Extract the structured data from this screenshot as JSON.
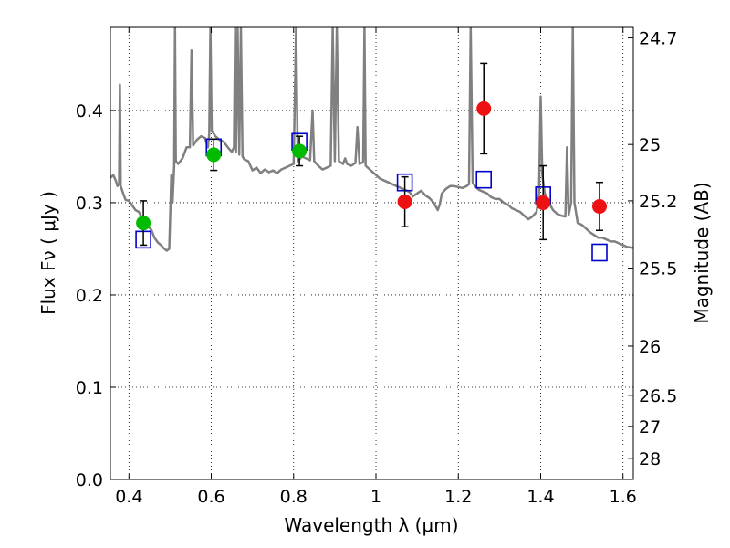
{
  "chart_data": {
    "type": "scatter",
    "xlabel": "Wavelength  λ (μm)",
    "ylabel": "Flux  Fν  ( μJy )",
    "ylabel_right": "Magnitude (AB)",
    "xlim": [
      0.355,
      1.625
    ],
    "ylim": [
      0.0,
      0.49
    ],
    "grid": true,
    "x_ticks": [
      {
        "value": 0.4,
        "label": "0.4"
      },
      {
        "value": 0.6,
        "label": "0.6"
      },
      {
        "value": 0.8,
        "label": "0.8"
      },
      {
        "value": 1.0,
        "label": "1"
      },
      {
        "value": 1.2,
        "label": "1.2"
      },
      {
        "value": 1.4,
        "label": "1.4"
      },
      {
        "value": 1.6,
        "label": "1.6"
      }
    ],
    "y_ticks": [
      {
        "value": 0.0,
        "label": "0.0"
      },
      {
        "value": 0.1,
        "label": "0.1"
      },
      {
        "value": 0.2,
        "label": "0.2"
      },
      {
        "value": 0.3,
        "label": "0.3"
      },
      {
        "value": 0.4,
        "label": "0.4"
      }
    ],
    "mag_ticks": [
      {
        "value": 24.7,
        "label": "24.7"
      },
      {
        "value": 25.0,
        "label": "25"
      },
      {
        "value": 25.2,
        "label": "25.2"
      },
      {
        "value": 25.5,
        "label": "25.5"
      },
      {
        "value": 26.0,
        "label": "26"
      },
      {
        "value": 26.5,
        "label": "26.5"
      },
      {
        "value": 27.0,
        "label": "27"
      },
      {
        "value": 28.0,
        "label": "28"
      }
    ],
    "model_spectrum": {
      "color": "#808080",
      "points": [
        [
          0.355,
          0.327
        ],
        [
          0.362,
          0.33
        ],
        [
          0.368,
          0.324
        ],
        [
          0.372,
          0.318
        ],
        [
          0.376,
          0.32
        ],
        [
          0.378,
          0.428
        ],
        [
          0.38,
          0.318
        ],
        [
          0.386,
          0.31
        ],
        [
          0.392,
          0.303
        ],
        [
          0.4,
          0.302
        ],
        [
          0.408,
          0.297
        ],
        [
          0.416,
          0.292
        ],
        [
          0.424,
          0.29
        ],
        [
          0.432,
          0.284
        ],
        [
          0.44,
          0.281
        ],
        [
          0.448,
          0.274
        ],
        [
          0.455,
          0.27
        ],
        [
          0.462,
          0.262
        ],
        [
          0.47,
          0.257
        ],
        [
          0.478,
          0.254
        ],
        [
          0.486,
          0.25
        ],
        [
          0.492,
          0.248
        ],
        [
          0.498,
          0.25
        ],
        [
          0.503,
          0.33
        ],
        [
          0.506,
          0.3
        ],
        [
          0.51,
          0.34
        ],
        [
          0.512,
          0.49
        ],
        [
          0.514,
          0.345
        ],
        [
          0.52,
          0.342
        ],
        [
          0.53,
          0.348
        ],
        [
          0.54,
          0.36
        ],
        [
          0.548,
          0.36
        ],
        [
          0.552,
          0.465
        ],
        [
          0.556,
          0.362
        ],
        [
          0.565,
          0.368
        ],
        [
          0.575,
          0.372
        ],
        [
          0.585,
          0.37
        ],
        [
          0.592,
          0.36
        ],
        [
          0.595,
          0.375
        ],
        [
          0.598,
          0.49
        ],
        [
          0.601,
          0.378
        ],
        [
          0.61,
          0.372
        ],
        [
          0.62,
          0.368
        ],
        [
          0.63,
          0.366
        ],
        [
          0.64,
          0.36
        ],
        [
          0.65,
          0.355
        ],
        [
          0.655,
          0.36
        ],
        [
          0.658,
          0.49
        ],
        [
          0.66,
          0.355
        ],
        [
          0.664,
          0.49
        ],
        [
          0.668,
          0.352
        ],
        [
          0.672,
          0.49
        ],
        [
          0.676,
          0.35
        ],
        [
          0.68,
          0.347
        ],
        [
          0.69,
          0.345
        ],
        [
          0.7,
          0.335
        ],
        [
          0.71,
          0.338
        ],
        [
          0.72,
          0.332
        ],
        [
          0.73,
          0.336
        ],
        [
          0.74,
          0.333
        ],
        [
          0.75,
          0.335
        ],
        [
          0.76,
          0.332
        ],
        [
          0.77,
          0.336
        ],
        [
          0.78,
          0.338
        ],
        [
          0.79,
          0.34
        ],
        [
          0.8,
          0.342
        ],
        [
          0.806,
          0.49
        ],
        [
          0.81,
          0.345
        ],
        [
          0.82,
          0.35
        ],
        [
          0.83,
          0.348
        ],
        [
          0.84,
          0.346
        ],
        [
          0.846,
          0.4
        ],
        [
          0.85,
          0.345
        ],
        [
          0.86,
          0.34
        ],
        [
          0.87,
          0.336
        ],
        [
          0.88,
          0.338
        ],
        [
          0.89,
          0.34
        ],
        [
          0.895,
          0.49
        ],
        [
          0.9,
          0.345
        ],
        [
          0.905,
          0.49
        ],
        [
          0.91,
          0.345
        ],
        [
          0.92,
          0.342
        ],
        [
          0.925,
          0.348
        ],
        [
          0.93,
          0.342
        ],
        [
          0.94,
          0.34
        ],
        [
          0.95,
          0.343
        ],
        [
          0.955,
          0.382
        ],
        [
          0.96,
          0.342
        ],
        [
          0.969,
          0.344
        ],
        [
          0.972,
          0.49
        ],
        [
          0.975,
          0.34
        ],
        [
          0.985,
          0.336
        ],
        [
          1.0,
          0.33
        ],
        [
          1.01,
          0.326
        ],
        [
          1.03,
          0.322
        ],
        [
          1.05,
          0.318
        ],
        [
          1.065,
          0.315
        ],
        [
          1.08,
          0.312
        ],
        [
          1.09,
          0.307
        ],
        [
          1.1,
          0.31
        ],
        [
          1.11,
          0.313
        ],
        [
          1.12,
          0.308
        ],
        [
          1.13,
          0.305
        ],
        [
          1.14,
          0.3
        ],
        [
          1.15,
          0.292
        ],
        [
          1.155,
          0.298
        ],
        [
          1.16,
          0.31
        ],
        [
          1.17,
          0.315
        ],
        [
          1.18,
          0.318
        ],
        [
          1.19,
          0.318
        ],
        [
          1.2,
          0.317
        ],
        [
          1.21,
          0.316
        ],
        [
          1.22,
          0.318
        ],
        [
          1.226,
          0.32
        ],
        [
          1.23,
          0.49
        ],
        [
          1.235,
          0.322
        ],
        [
          1.24,
          0.318
        ],
        [
          1.25,
          0.314
        ],
        [
          1.26,
          0.312
        ],
        [
          1.27,
          0.31
        ],
        [
          1.28,
          0.306
        ],
        [
          1.29,
          0.304
        ],
        [
          1.3,
          0.304
        ],
        [
          1.31,
          0.3
        ],
        [
          1.32,
          0.298
        ],
        [
          1.33,
          0.294
        ],
        [
          1.34,
          0.292
        ],
        [
          1.35,
          0.29
        ],
        [
          1.36,
          0.286
        ],
        [
          1.37,
          0.282
        ],
        [
          1.38,
          0.285
        ],
        [
          1.39,
          0.29
        ],
        [
          1.396,
          0.31
        ],
        [
          1.4,
          0.415
        ],
        [
          1.404,
          0.33
        ],
        [
          1.41,
          0.31
        ],
        [
          1.42,
          0.3
        ],
        [
          1.43,
          0.292
        ],
        [
          1.44,
          0.288
        ],
        [
          1.45,
          0.286
        ],
        [
          1.46,
          0.285
        ],
        [
          1.464,
          0.36
        ],
        [
          1.468,
          0.287
        ],
        [
          1.474,
          0.3
        ],
        [
          1.478,
          0.49
        ],
        [
          1.482,
          0.3
        ],
        [
          1.49,
          0.278
        ],
        [
          1.5,
          0.276
        ],
        [
          1.51,
          0.272
        ],
        [
          1.52,
          0.268
        ],
        [
          1.53,
          0.265
        ],
        [
          1.54,
          0.262
        ],
        [
          1.55,
          0.262
        ],
        [
          1.56,
          0.26
        ],
        [
          1.57,
          0.258
        ],
        [
          1.58,
          0.258
        ],
        [
          1.59,
          0.256
        ],
        [
          1.6,
          0.254
        ],
        [
          1.61,
          0.252
        ],
        [
          1.625,
          0.251
        ]
      ]
    },
    "series": [
      {
        "marker": "square",
        "color": "#0000cc",
        "points": [
          {
            "x": 0.435,
            "y": 0.26
          },
          {
            "x": 0.606,
            "y": 0.36
          },
          {
            "x": 0.814,
            "y": 0.366
          },
          {
            "x": 1.07,
            "y": 0.322
          },
          {
            "x": 1.262,
            "y": 0.325
          },
          {
            "x": 1.406,
            "y": 0.308
          },
          {
            "x": 1.543,
            "y": 0.246
          }
        ]
      },
      {
        "marker": "circle",
        "color": "#00bb00",
        "points": [
          {
            "x": 0.435,
            "y": 0.278,
            "err": 0.024
          },
          {
            "x": 0.606,
            "y": 0.352,
            "err": 0.017
          },
          {
            "x": 0.814,
            "y": 0.356,
            "err": 0.016
          }
        ]
      },
      {
        "marker": "circle",
        "color": "#ee1111",
        "points": [
          {
            "x": 1.07,
            "y": 0.301,
            "err": 0.027
          },
          {
            "x": 1.262,
            "y": 0.402,
            "err": 0.049
          },
          {
            "x": 1.406,
            "y": 0.3,
            "err": 0.04
          },
          {
            "x": 1.543,
            "y": 0.296,
            "err": 0.026
          }
        ]
      }
    ]
  }
}
